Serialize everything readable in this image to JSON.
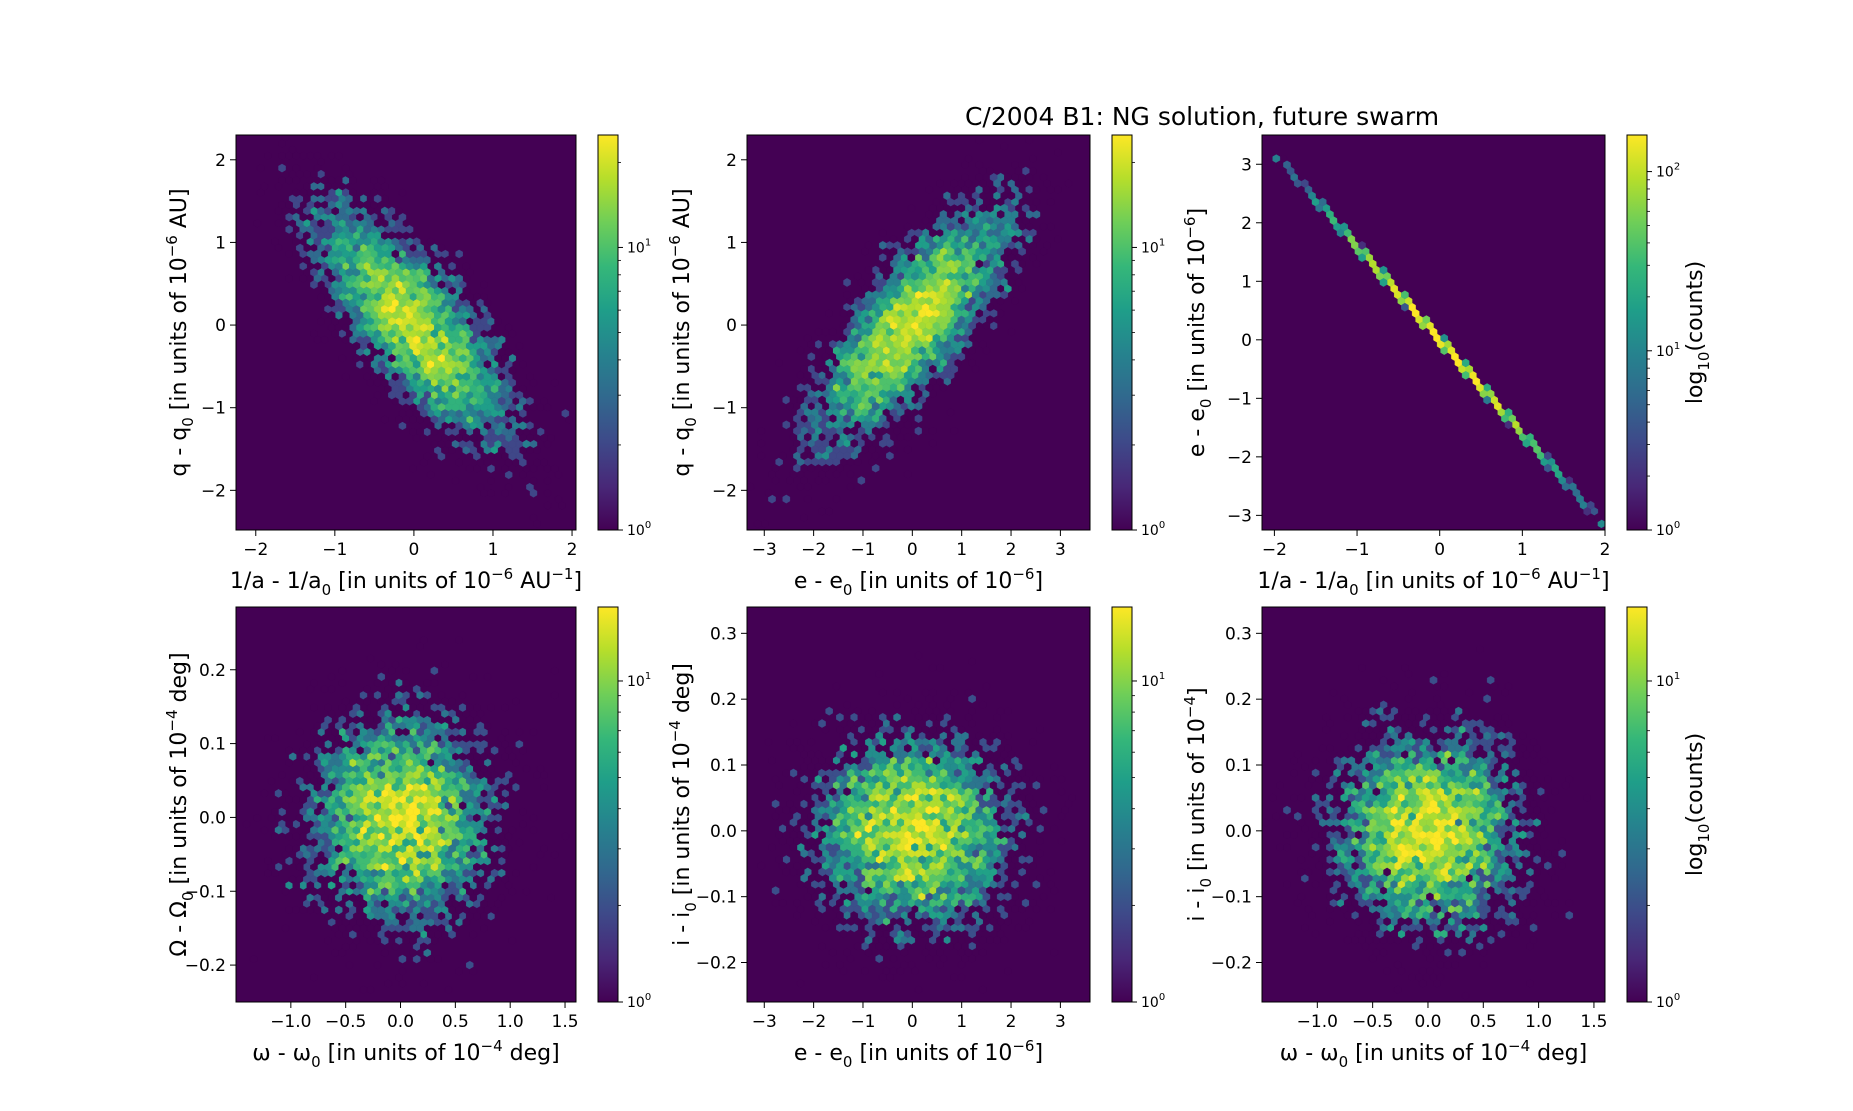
{
  "figure": {
    "title": "C/2004 B1:  NG solution, future swarm"
  },
  "colors": {
    "viridis": [
      "#440154",
      "#482878",
      "#3e4989",
      "#31688e",
      "#26828e",
      "#1f9e89",
      "#35b779",
      "#6ece58",
      "#b5de2b",
      "#fde725"
    ],
    "background": "#440154"
  },
  "chart_data": [
    {
      "id": "p1",
      "type": "heatmap",
      "subtype": "hexbin",
      "xlabel": {
        "pre": "1/a - 1/a",
        "sub": "0",
        "mid": " [in units of 10",
        "sup": "−6",
        "post": " AU",
        "sup2": "−1",
        "end": "]"
      },
      "ylabel": {
        "pre": "q - q",
        "sub": "0",
        "mid": " [in units of 10",
        "sup": "−6",
        "post": " AU]"
      },
      "xlim": [
        -2.25,
        2.05
      ],
      "ylim": [
        -2.48,
        2.3
      ],
      "xticks": [
        -2,
        -1,
        0,
        1,
        2
      ],
      "xtick_labels": [
        "−2",
        "−1",
        "0",
        "1",
        "2"
      ],
      "yticks": [
        -2,
        -1,
        0,
        1,
        2
      ],
      "ytick_labels": [
        "−2",
        "−1",
        "0",
        "1",
        "2"
      ],
      "distribution": {
        "shape": "gaussian",
        "sx": 0.62,
        "sy": 0.72,
        "rho": -0.78
      },
      "colorbar": {
        "scale": "log",
        "max": 25,
        "ticks": [
          {
            "base": "10",
            "exp": "0",
            "value": 1
          },
          {
            "base": "10",
            "exp": "1",
            "value": 10
          }
        ],
        "label": null
      }
    },
    {
      "id": "p2",
      "type": "heatmap",
      "subtype": "hexbin",
      "xlabel": {
        "pre": "e - e",
        "sub": "0",
        "mid": " [in units of 10",
        "sup": "−6",
        "post": "]"
      },
      "ylabel": {
        "pre": "q - q",
        "sub": "0",
        "mid": " [in units of 10",
        "sup": "−6",
        "post": " AU]"
      },
      "xlim": [
        -3.35,
        3.6
      ],
      "ylim": [
        -2.48,
        2.3
      ],
      "xticks": [
        -3,
        -2,
        -1,
        0,
        1,
        2,
        3
      ],
      "xtick_labels": [
        "−3",
        "−2",
        "−1",
        "0",
        "1",
        "2",
        "3"
      ],
      "yticks": [
        -2,
        -1,
        0,
        1,
        2
      ],
      "ytick_labels": [
        "−2",
        "−1",
        "0",
        "1",
        "2"
      ],
      "distribution": {
        "shape": "gaussian",
        "sx": 1.0,
        "sy": 0.72,
        "rho": 0.78
      },
      "colorbar": {
        "scale": "log",
        "max": 25,
        "ticks": [
          {
            "base": "10",
            "exp": "0",
            "value": 1
          },
          {
            "base": "10",
            "exp": "1",
            "value": 10
          }
        ],
        "label": null
      }
    },
    {
      "id": "p3",
      "type": "heatmap",
      "subtype": "hexbin",
      "title": "C/2004 B1:  NG solution, future swarm",
      "xlabel": {
        "pre": "1/a - 1/a",
        "sub": "0",
        "mid": " [in units of 10",
        "sup": "−6",
        "post": " AU",
        "sup2": "−1",
        "end": "]"
      },
      "ylabel": {
        "pre": "e - e",
        "sub": "0",
        "mid": " [in units of 10",
        "sup": "−6",
        "post": "]"
      },
      "xlim": [
        -2.15,
        2.0
      ],
      "ylim": [
        -3.25,
        3.5
      ],
      "xticks": [
        -2,
        -1,
        0,
        1,
        2
      ],
      "xtick_labels": [
        "−2",
        "−1",
        "0",
        "1",
        "2"
      ],
      "yticks": [
        -3,
        -2,
        -1,
        0,
        1,
        2,
        3
      ],
      "ytick_labels": [
        "−3",
        "−2",
        "−1",
        "0",
        "1",
        "2",
        "3"
      ],
      "distribution": {
        "shape": "line",
        "slope": -1.6,
        "x_range": [
          -1.95,
          1.95
        ]
      },
      "colorbar": {
        "scale": "log",
        "max": 160,
        "ticks": [
          {
            "base": "10",
            "exp": "0",
            "value": 1
          },
          {
            "base": "10",
            "exp": "1",
            "value": 10
          },
          {
            "base": "10",
            "exp": "2",
            "value": 100
          }
        ],
        "label": {
          "pre": "log",
          "sub": "10",
          "post": "(counts)"
        }
      }
    },
    {
      "id": "p4",
      "type": "heatmap",
      "subtype": "hexbin",
      "xlabel": {
        "pre": "ω - ω",
        "sub": "0",
        "mid": " [in units of 10",
        "sup": "−4",
        "post": " deg]"
      },
      "ylabel": {
        "pre": "Ω - Ω",
        "sub": "0",
        "mid": " [in units of 10",
        "sup": "−4",
        "post": " deg]"
      },
      "xlim": [
        -1.5,
        1.6
      ],
      "ylim": [
        -0.25,
        0.285
      ],
      "xticks": [
        -1.0,
        -0.5,
        0.0,
        0.5,
        1.0,
        1.5
      ],
      "xtick_labels": [
        "−1.0",
        "−0.5",
        "0.0",
        "0.5",
        "1.0",
        "1.5"
      ],
      "yticks": [
        -0.2,
        -0.1,
        0.0,
        0.1,
        0.2
      ],
      "ytick_labels": [
        "−0.2",
        "−0.1",
        "0.0",
        "0.1",
        "0.2"
      ],
      "distribution": {
        "shape": "gaussian",
        "sx": 0.42,
        "sy": 0.07,
        "rho": 0.0
      },
      "colorbar": {
        "scale": "log",
        "max": 17,
        "ticks": [
          {
            "base": "10",
            "exp": "0",
            "value": 1
          },
          {
            "base": "10",
            "exp": "1",
            "value": 10
          }
        ],
        "label": null
      }
    },
    {
      "id": "p5",
      "type": "heatmap",
      "subtype": "hexbin",
      "xlabel": {
        "pre": "e - e",
        "sub": "0",
        "mid": " [in units of 10",
        "sup": "−6",
        "post": "]"
      },
      "ylabel": {
        "pre": "i - i",
        "sub": "0",
        "mid": " [in units of 10",
        "sup": "−4",
        "post": " deg]"
      },
      "xlim": [
        -3.35,
        3.6
      ],
      "ylim": [
        -0.26,
        0.34
      ],
      "xticks": [
        -3,
        -2,
        -1,
        0,
        1,
        2,
        3
      ],
      "xtick_labels": [
        "−3",
        "−2",
        "−1",
        "0",
        "1",
        "2",
        "3"
      ],
      "yticks": [
        -0.2,
        -0.1,
        0.0,
        0.1,
        0.2,
        0.3
      ],
      "ytick_labels": [
        "−0.2",
        "−0.1",
        "0.0",
        "0.1",
        "0.2",
        "0.3"
      ],
      "distribution": {
        "shape": "gaussian",
        "sx": 1.0,
        "sy": 0.075,
        "rho": 0.0
      },
      "colorbar": {
        "scale": "log",
        "max": 17,
        "ticks": [
          {
            "base": "10",
            "exp": "0",
            "value": 1
          },
          {
            "base": "10",
            "exp": "1",
            "value": 10
          }
        ],
        "label": null
      }
    },
    {
      "id": "p6",
      "type": "heatmap",
      "subtype": "hexbin",
      "xlabel": {
        "pre": "ω - ω",
        "sub": "0",
        "mid": " [in units of 10",
        "sup": "−4",
        "post": " deg]"
      },
      "ylabel": {
        "pre": "i - i",
        "sub": "0",
        "mid": " [in units of 10",
        "sup": "−4",
        "post": "]"
      },
      "xlim": [
        -1.5,
        1.6
      ],
      "ylim": [
        -0.26,
        0.34
      ],
      "xticks": [
        -1.0,
        -0.5,
        0.0,
        0.5,
        1.0,
        1.5
      ],
      "xtick_labels": [
        "−1.0",
        "−0.5",
        "0.0",
        "0.5",
        "1.0",
        "1.5"
      ],
      "yticks": [
        -0.2,
        -0.1,
        0.0,
        0.1,
        0.2,
        0.3
      ],
      "ytick_labels": [
        "−0.2",
        "−0.1",
        "0.0",
        "0.1",
        "0.2",
        "0.3"
      ],
      "distribution": {
        "shape": "gaussian",
        "sx": 0.42,
        "sy": 0.075,
        "rho": 0.0
      },
      "colorbar": {
        "scale": "log",
        "max": 17,
        "ticks": [
          {
            "base": "10",
            "exp": "0",
            "value": 1
          },
          {
            "base": "10",
            "exp": "1",
            "value": 10
          }
        ],
        "label": {
          "pre": "log",
          "sub": "10",
          "post": "(counts)"
        }
      }
    }
  ]
}
